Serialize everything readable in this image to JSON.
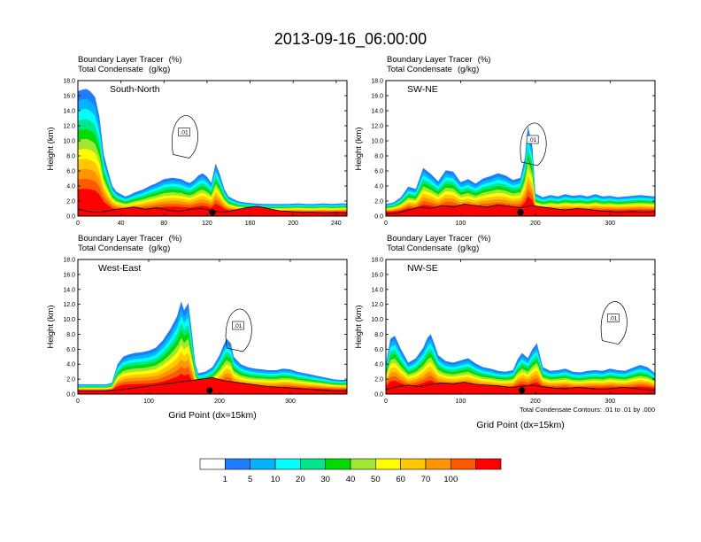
{
  "chart_data": {
    "type": "heatmap",
    "title": "2013-09-16_06:00:00",
    "fields": [
      "Boundary Layer Tracer",
      "Total Condensate"
    ],
    "units": [
      "(%)",
      "(g/kg)"
    ],
    "colorbar": {
      "levels": [
        "1",
        "5",
        "10",
        "20",
        "30",
        "40",
        "50",
        "60",
        "70",
        "100"
      ],
      "colors": [
        "#ffffff",
        "#1e7dff",
        "#00b4ff",
        "#00ffff",
        "#00e68c",
        "#00dc00",
        "#a0e632",
        "#ffff00",
        "#ffc800",
        "#ff9600",
        "#ff5a00",
        "#ff0000"
      ]
    },
    "contour_note": "Total Condensate Contours: .01 to .01 by .000",
    "contour_label": ".01",
    "ylabel": "Height (km)",
    "xlabel": "Grid Point (dx=15km)",
    "ylim": [
      0,
      18
    ],
    "yticks": [
      "0.0",
      "2.0",
      "4.0",
      "6.0",
      "8.0",
      "10.0",
      "12.0",
      "14.0",
      "16.0",
      "18.0"
    ],
    "panels": [
      {
        "name": "South-North",
        "xlim": [
          0,
          250
        ],
        "xticks": [
          0,
          40,
          80,
          120,
          160,
          200,
          240
        ],
        "marker_x": 125,
        "tracer_profile": {
          "x": [
            0,
            4,
            8,
            12,
            16,
            20,
            24,
            28,
            32,
            36,
            40,
            44,
            48,
            52,
            56,
            60,
            64,
            68,
            72,
            76,
            80,
            84,
            88,
            92,
            96,
            100,
            104,
            108,
            112,
            116,
            120,
            124,
            128,
            132,
            136,
            140,
            148,
            156,
            164,
            172,
            180,
            188,
            196,
            204,
            212,
            220,
            228,
            236,
            244,
            250
          ],
          "top": [
            16.6,
            16.8,
            16.9,
            16.5,
            15.8,
            13.2,
            8.2,
            6.0,
            4.0,
            3.2,
            2.9,
            2.6,
            2.8,
            3.1,
            3.3,
            3.5,
            3.8,
            4.1,
            4.3,
            4.6,
            4.9,
            5.0,
            5.1,
            5.0,
            4.9,
            4.6,
            4.4,
            4.8,
            5.4,
            5.7,
            5.2,
            4.4,
            7.0,
            5.5,
            3.6,
            2.6,
            2.0,
            1.8,
            1.7,
            1.6,
            1.6,
            1.6,
            1.6,
            1.7,
            1.6,
            1.6,
            1.7,
            1.6,
            1.7,
            1.7
          ]
        }
      },
      {
        "name": "SW-NE",
        "xlim": [
          0,
          360
        ],
        "xticks": [
          0,
          100,
          200,
          300
        ],
        "marker_x": 180,
        "tracer_profile": {
          "x": [
            0,
            10,
            20,
            30,
            40,
            50,
            60,
            70,
            80,
            90,
            100,
            110,
            120,
            130,
            140,
            150,
            160,
            170,
            180,
            186,
            190,
            196,
            200,
            210,
            220,
            230,
            240,
            250,
            260,
            270,
            280,
            290,
            300,
            310,
            320,
            330,
            340,
            350,
            360
          ],
          "top": [
            1.6,
            1.8,
            2.5,
            3.9,
            3.6,
            6.4,
            5.6,
            4.6,
            6.1,
            5.9,
            4.5,
            4.9,
            4.3,
            5.0,
            5.3,
            5.7,
            5.4,
            4.8,
            5.1,
            7.8,
            12.0,
            9.2,
            3.0,
            2.5,
            2.8,
            2.6,
            2.9,
            2.7,
            2.8,
            2.6,
            2.9,
            2.6,
            2.7,
            2.5,
            2.6,
            2.7,
            2.8,
            2.7,
            2.6
          ]
        }
      },
      {
        "name": "West-East",
        "xlim": [
          0,
          380
        ],
        "xticks": [
          0,
          100,
          200,
          300
        ],
        "marker_x": 186,
        "tracer_profile": {
          "x": [
            0,
            20,
            40,
            48,
            56,
            64,
            72,
            80,
            90,
            100,
            110,
            120,
            130,
            140,
            146,
            150,
            156,
            160,
            166,
            170,
            180,
            190,
            200,
            206,
            210,
            216,
            220,
            230,
            240,
            250,
            260,
            270,
            280,
            290,
            300,
            310,
            320,
            330,
            340,
            350,
            360,
            370,
            380
          ],
          "top": [
            1.3,
            1.3,
            1.3,
            1.5,
            4.0,
            5.0,
            5.3,
            5.5,
            5.6,
            5.8,
            6.2,
            7.2,
            8.6,
            10.4,
            12.4,
            11.2,
            12.2,
            9.0,
            4.0,
            2.8,
            3.0,
            3.6,
            5.2,
            6.6,
            7.4,
            6.8,
            5.0,
            4.0,
            3.6,
            3.4,
            3.3,
            3.2,
            3.2,
            3.4,
            3.3,
            3.0,
            2.8,
            2.6,
            2.4,
            2.2,
            2.0,
            1.9,
            1.9
          ]
        }
      },
      {
        "name": "NW-SE",
        "xlim": [
          0,
          360
        ],
        "xticks": [
          0,
          100,
          200,
          300
        ],
        "marker_x": 182,
        "tracer_profile": {
          "x": [
            0,
            6,
            12,
            20,
            30,
            40,
            50,
            56,
            60,
            66,
            70,
            80,
            90,
            100,
            110,
            120,
            130,
            140,
            150,
            160,
            170,
            176,
            182,
            190,
            196,
            202,
            210,
            220,
            230,
            240,
            250,
            260,
            270,
            280,
            290,
            300,
            310,
            320,
            330,
            340,
            350,
            360
          ],
          "top": [
            4.0,
            7.4,
            7.8,
            6.0,
            4.2,
            4.8,
            6.2,
            7.6,
            8.0,
            6.4,
            5.2,
            4.4,
            4.2,
            4.5,
            4.8,
            4.1,
            3.6,
            3.4,
            3.1,
            3.0,
            3.2,
            4.6,
            5.5,
            4.8,
            6.0,
            6.8,
            3.6,
            3.1,
            3.2,
            3.4,
            3.0,
            2.9,
            3.1,
            3.2,
            3.1,
            3.4,
            3.2,
            3.1,
            3.5,
            3.9,
            3.6,
            2.8
          ]
        }
      }
    ]
  }
}
